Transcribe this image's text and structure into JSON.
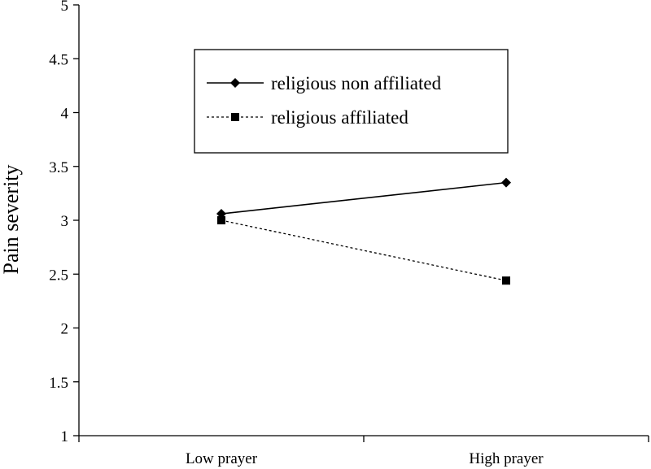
{
  "chart_data": {
    "type": "line",
    "title": "",
    "xlabel": "",
    "ylabel": "Pain severity",
    "categories": [
      "Low prayer",
      "High prayer"
    ],
    "ylim": [
      1,
      5
    ],
    "yticks": [
      "1",
      "1.5",
      "2",
      "2.5",
      "3",
      "3.5",
      "4",
      "4.5",
      "5"
    ],
    "grid": false,
    "legend_position": "top-center",
    "series": [
      {
        "name": "religious non affiliated",
        "values": [
          3.06,
          3.35
        ],
        "line_style": "solid",
        "marker": "diamond",
        "color": "#000000"
      },
      {
        "name": "religious affiliated",
        "values": [
          3.0,
          2.44
        ],
        "line_style": "dotted",
        "marker": "square",
        "color": "#000000"
      }
    ]
  }
}
